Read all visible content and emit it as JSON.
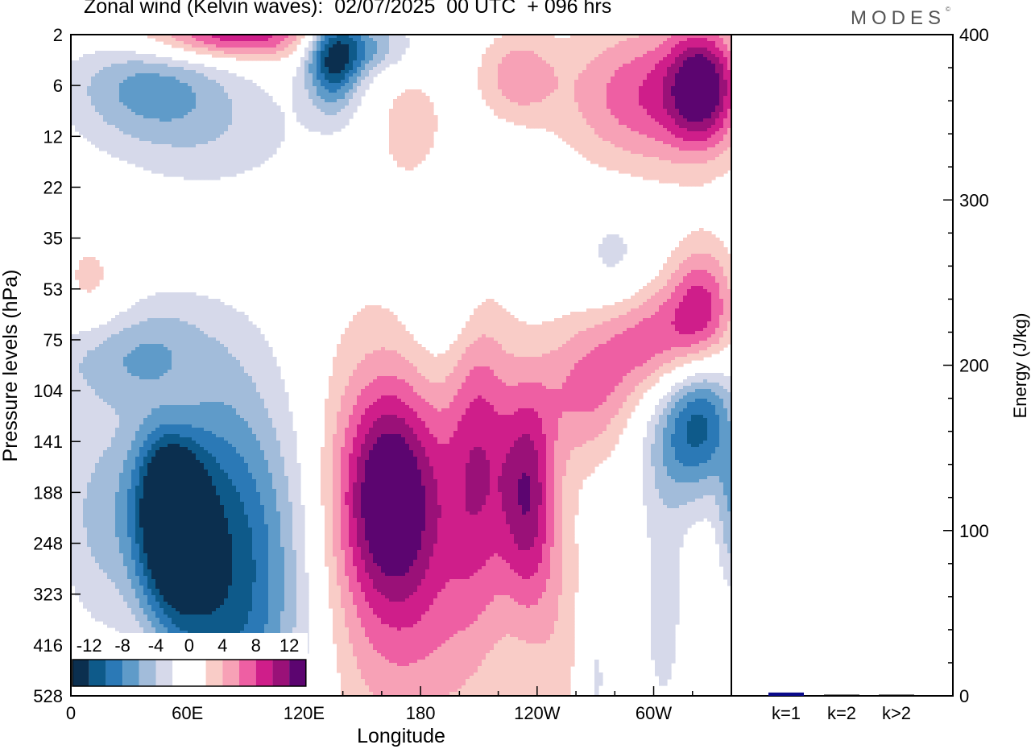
{
  "title": "Zonal wind (Kelvin waves):  02/07/2025  00 UTC  + 096 hrs",
  "brand": "MODES",
  "brand_mark": "©",
  "colors": {
    "neg": [
      "#0b2f4f",
      "#0e5a8a",
      "#2b79b6",
      "#5f9bc9",
      "#a2bcda",
      "#d6d9ea"
    ],
    "pos": [
      "#f9ccc7",
      "#f7a1b6",
      "#ee5fa3",
      "#cf1e8a",
      "#9a1178",
      "#5c0570"
    ],
    "energy_bar": "#0a0a8a"
  },
  "chart_data": [
    {
      "type": "heatmap",
      "title": "Zonal wind (Kelvin waves):  02/07/2025  00 UTC  + 096 hrs",
      "xlabel": "Longitude",
      "ylabel": "Pressure levels (hPa)",
      "x_ticks": [
        "0",
        "60E",
        "120E",
        "180",
        "120W",
        "60W"
      ],
      "x_tick_degrees": [
        0,
        60,
        120,
        180,
        240,
        300
      ],
      "xlim": [
        0,
        340
      ],
      "y_ticks": [
        "2",
        "6",
        "12",
        "22",
        "35",
        "53",
        "75",
        "104",
        "141",
        "188",
        "248",
        "323",
        "416",
        "528"
      ],
      "colorbar": {
        "labels": [
          "-12",
          "-8",
          "-4",
          "0",
          "4",
          "8",
          "12"
        ],
        "levels": [
          -14,
          -12,
          -10,
          -8,
          -6,
          -4,
          -2,
          2,
          4,
          6,
          8,
          10,
          12,
          14
        ]
      },
      "features": [
        {
          "sign": "neg",
          "lon": 50,
          "lev": 9.2,
          "amp": 13,
          "wlon": 12,
          "wlev": 1.6
        },
        {
          "sign": "neg",
          "lon": 62,
          "lev": 10.3,
          "amp": 7,
          "wlon": 22,
          "wlev": 2.4
        },
        {
          "sign": "neg",
          "lon": 95,
          "lev": 11.5,
          "amp": 5,
          "wlon": 25,
          "wlev": 2.6
        },
        {
          "sign": "neg",
          "lon": 14,
          "lev": 9.4,
          "amp": 4,
          "wlon": 16,
          "wlev": 1.5
        },
        {
          "sign": "neg",
          "lon": 25,
          "lev": 6.3,
          "amp": 5,
          "wlon": 30,
          "wlev": 0.7
        },
        {
          "sign": "neg",
          "lon": 90,
          "lev": 9.5,
          "amp": 4,
          "wlon": 30,
          "wlev": 2.5
        },
        {
          "sign": "neg",
          "lon": 135,
          "lev": 0.5,
          "amp": 11,
          "wlon": 10,
          "wlev": 0.7
        },
        {
          "sign": "neg",
          "lon": 150,
          "lev": 0.2,
          "amp": 7,
          "wlon": 18,
          "wlev": 0.4
        },
        {
          "sign": "neg",
          "lon": 40,
          "lev": 1.0,
          "amp": 6,
          "wlon": 30,
          "wlev": 0.7
        },
        {
          "sign": "neg",
          "lon": 70,
          "lev": 2.0,
          "amp": 3,
          "wlon": 40,
          "wlev": 0.8
        },
        {
          "sign": "neg",
          "lon": 195,
          "lev": 5.0,
          "amp": 3,
          "wlon": 15,
          "wlev": 1.2
        },
        {
          "sign": "neg",
          "lon": 325,
          "lev": 7.5,
          "amp": 9,
          "wlon": 13,
          "wlev": 1.0
        },
        {
          "sign": "neg",
          "lon": 310,
          "lev": 8.0,
          "amp": 4,
          "wlon": 15,
          "wlev": 1.0
        },
        {
          "sign": "neg",
          "lon": 340,
          "lev": 9.5,
          "amp": 5,
          "wlon": 5,
          "wlev": 1.0
        },
        {
          "sign": "neg",
          "lon": 280,
          "lev": 4.5,
          "amp": 3,
          "wlon": 14,
          "wlev": 0.8
        },
        {
          "sign": "neg",
          "lon": 305,
          "lev": 11.2,
          "amp": 3,
          "wlon": 8,
          "wlev": 1.8
        },
        {
          "sign": "neg",
          "lon": 270,
          "lev": 12.5,
          "amp": 3,
          "wlon": 6,
          "wlev": 1.5
        },
        {
          "sign": "pos",
          "lon": 165,
          "lev": 9.0,
          "amp": 11,
          "wlon": 18,
          "wlev": 1.5
        },
        {
          "sign": "pos",
          "lon": 155,
          "lev": 10.0,
          "amp": 5,
          "wlon": 30,
          "wlev": 3.2
        },
        {
          "sign": "pos",
          "lon": 210,
          "lev": 8.2,
          "amp": 8,
          "wlon": 12,
          "wlev": 2.2
        },
        {
          "sign": "pos",
          "lon": 235,
          "lev": 9.0,
          "amp": 10,
          "wlon": 10,
          "wlev": 1.5
        },
        {
          "sign": "pos",
          "lon": 265,
          "lev": 7.0,
          "amp": 6,
          "wlon": 18,
          "wlev": 1.0
        },
        {
          "sign": "pos",
          "lon": 300,
          "lev": 6.0,
          "amp": 7,
          "wlon": 20,
          "wlev": 0.8
        },
        {
          "sign": "pos",
          "lon": 325,
          "lev": 5.4,
          "amp": 8,
          "wlon": 12,
          "wlev": 0.9
        },
        {
          "sign": "pos",
          "lon": 190,
          "lev": 11.5,
          "amp": 3,
          "wlon": 25,
          "wlev": 2.0
        },
        {
          "sign": "pos",
          "lon": 250,
          "lev": 11.5,
          "amp": 3,
          "wlon": 14,
          "wlev": 2.0
        },
        {
          "sign": "pos",
          "lon": 52,
          "lev": 7.4,
          "amp": 6,
          "wlon": 12,
          "wlev": 0.8
        },
        {
          "sign": "pos",
          "lon": 45,
          "lev": 12.8,
          "amp": 4,
          "wlon": 14,
          "wlev": 1.5
        },
        {
          "sign": "pos",
          "lon": 300,
          "lev": 1.2,
          "amp": 8,
          "wlon": 32,
          "wlev": 1.0
        },
        {
          "sign": "pos",
          "lon": 325,
          "lev": 1.0,
          "amp": 10,
          "wlon": 12,
          "wlev": 0.8
        },
        {
          "sign": "pos",
          "lon": 230,
          "lev": 0.8,
          "amp": 5,
          "wlon": 14,
          "wlev": 0.6
        },
        {
          "sign": "pos",
          "lon": 85,
          "lev": 0.0,
          "amp": 10,
          "wlon": 35,
          "wlev": 0.35
        },
        {
          "sign": "pos",
          "lon": 10,
          "lev": 5.0,
          "amp": 3,
          "wlon": 12,
          "wlev": 0.8
        },
        {
          "sign": "pos",
          "lon": 175,
          "lev": 1.8,
          "amp": 3,
          "wlon": 14,
          "wlev": 0.9
        }
      ]
    },
    {
      "type": "bar",
      "ylabel": "Energy (J/kg)",
      "ylim": [
        0,
        400
      ],
      "y_ticks": [
        "0",
        "100",
        "200",
        "300",
        "400"
      ],
      "categories": [
        "k=1",
        "k=2",
        "k>2"
      ],
      "values": [
        2.0,
        0.5,
        0.6
      ]
    }
  ]
}
